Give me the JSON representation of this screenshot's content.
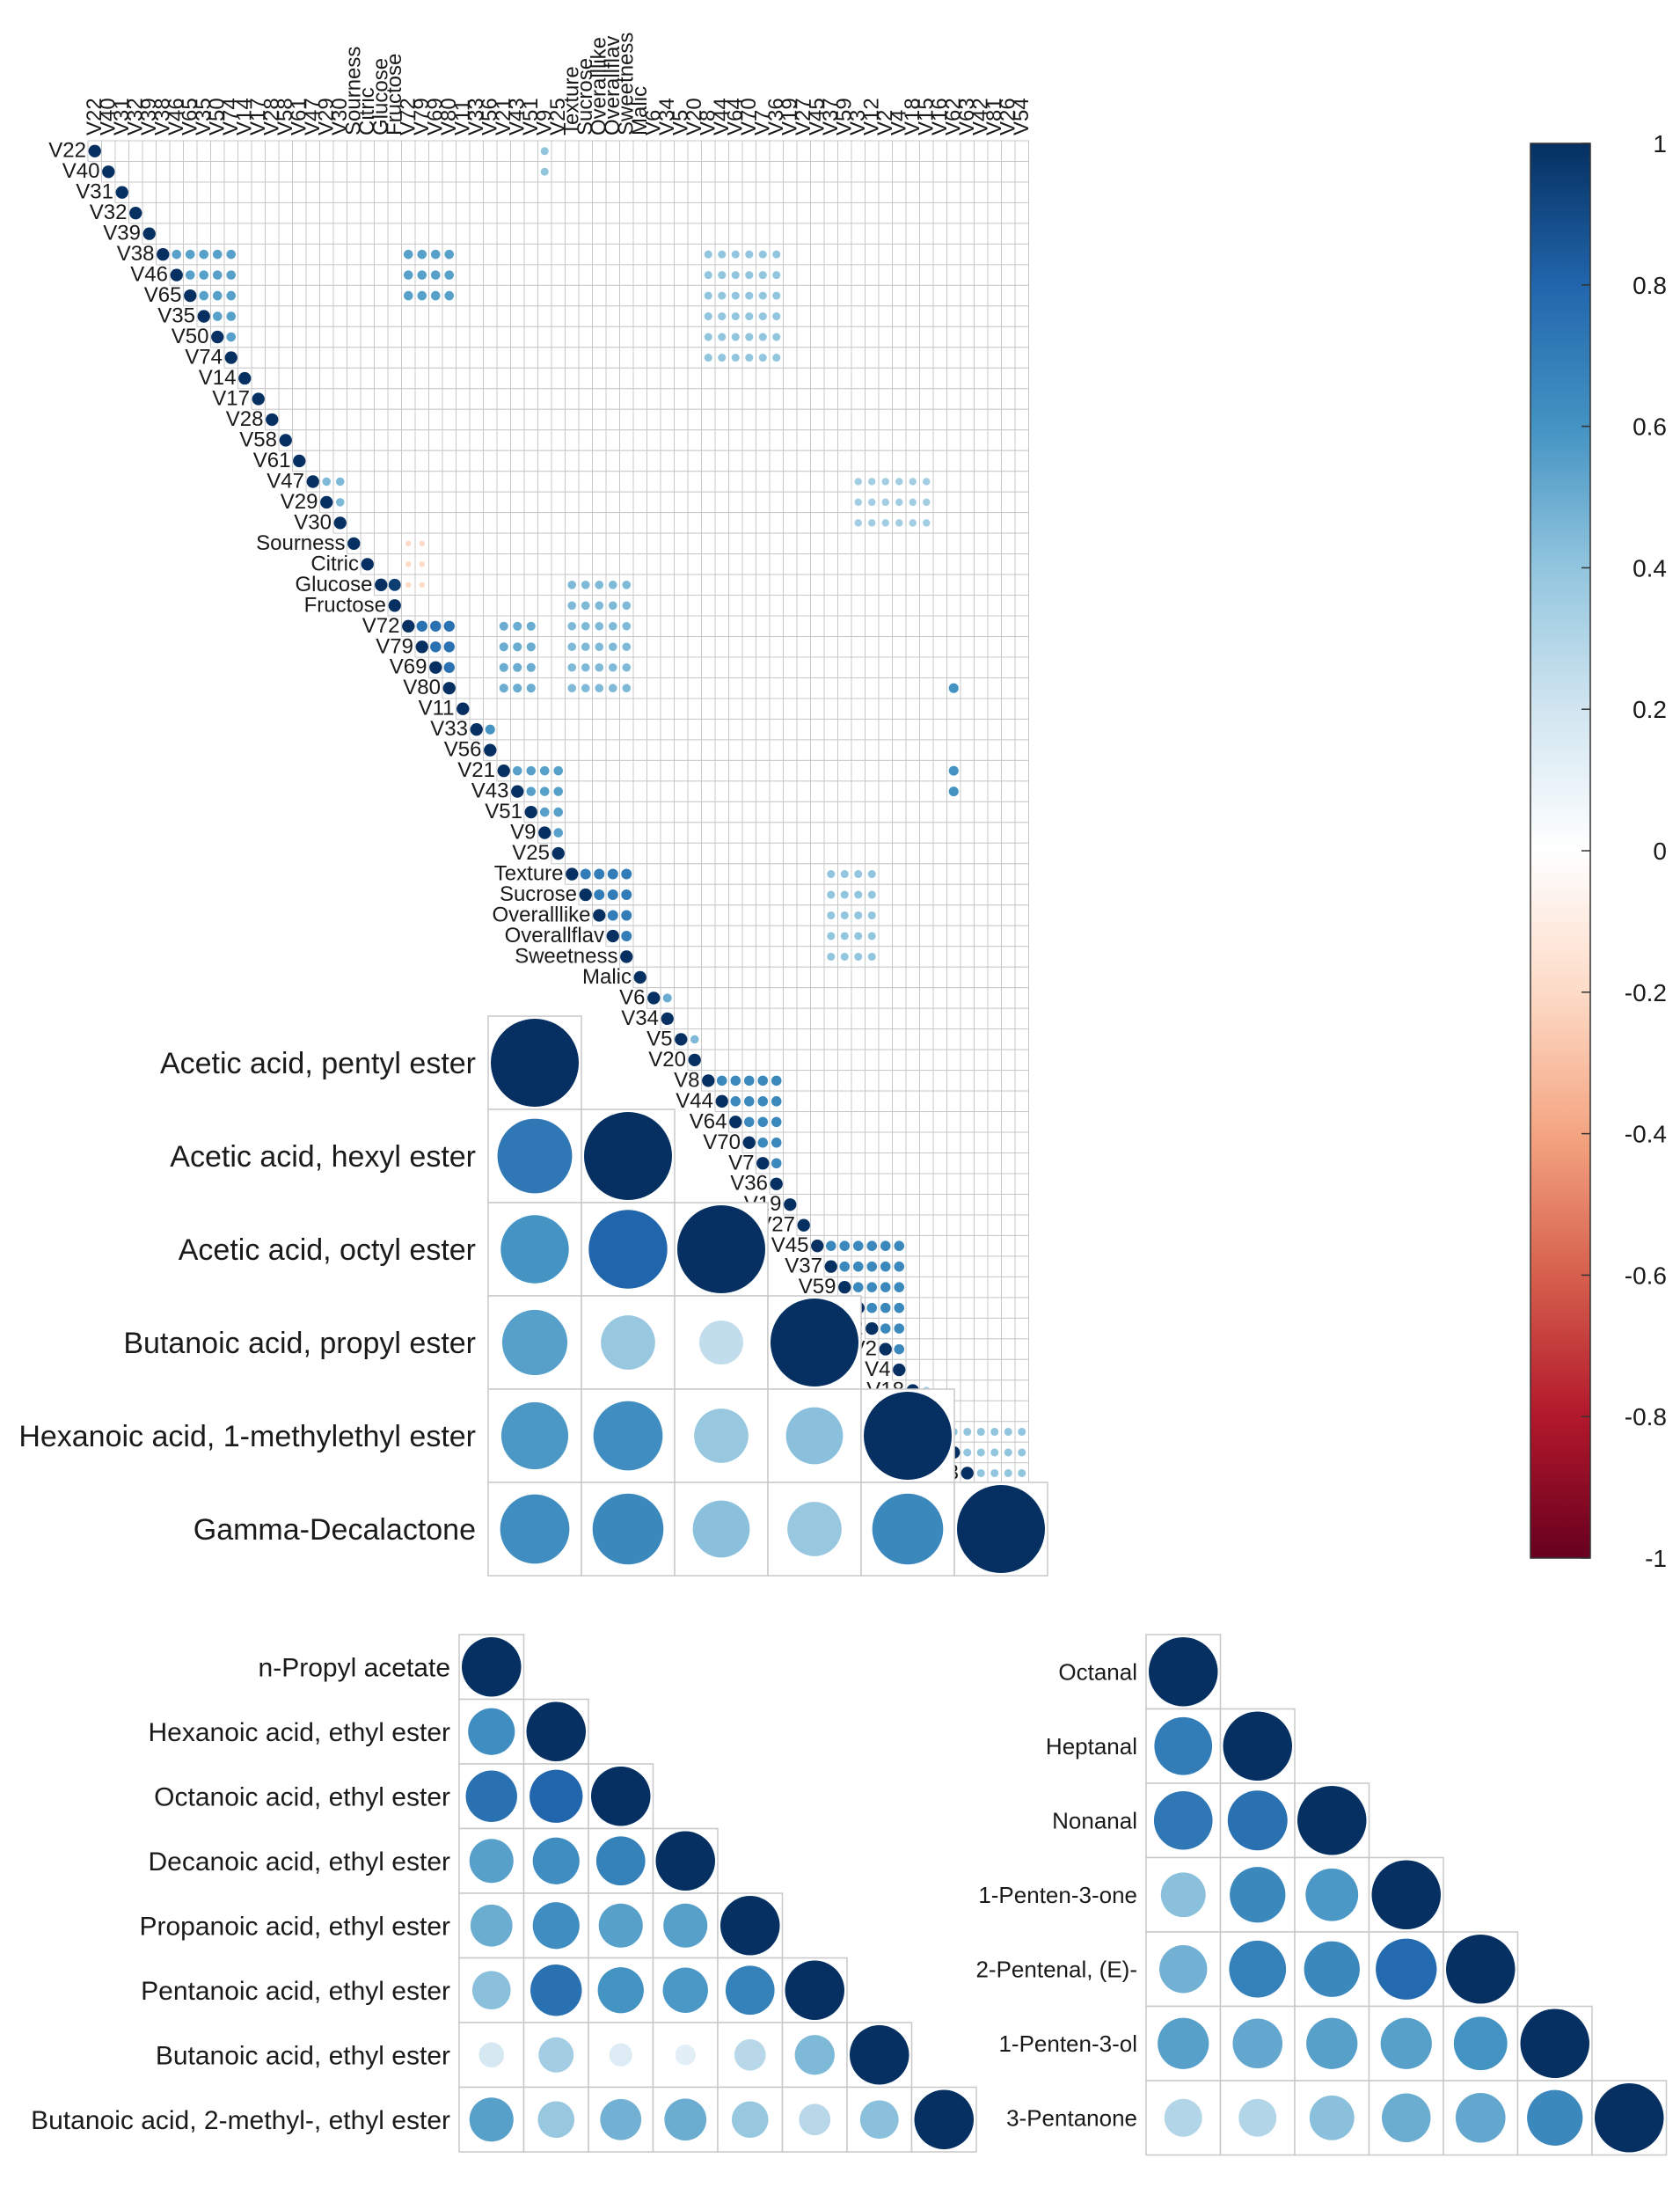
{
  "colors": {
    "grid": "#c8c8c8",
    "scale": [
      "#67001f",
      "#b2182b",
      "#d6604d",
      "#f4a582",
      "#fddbc7",
      "#ffffff",
      "#d1e5f0",
      "#92c5de",
      "#4393c3",
      "#2166ac",
      "#053061"
    ]
  },
  "chart_data": [
    {
      "id": "big",
      "type": "heatmap",
      "subtype": "upper-triangular correlation plot (circles)",
      "variables": [
        "V22",
        "V40",
        "V31",
        "V32",
        "V39",
        "V38",
        "V46",
        "V65",
        "V35",
        "V50",
        "V74",
        "V14",
        "V17",
        "V28",
        "V58",
        "V61",
        "V47",
        "V29",
        "V30",
        "Sourness",
        "Citric",
        "Glucose",
        "Fructose",
        "V72",
        "V79",
        "V69",
        "V80",
        "V11",
        "V33",
        "V56",
        "V21",
        "V43",
        "V51",
        "V9",
        "V25",
        "Texture",
        "Sucrose",
        "Overalllike",
        "Overallflav",
        "Sweetness",
        "Malic",
        "V6",
        "V34",
        "V5",
        "V20",
        "V8",
        "V44",
        "V64",
        "V70",
        "V7",
        "V36",
        "V19",
        "V27",
        "V45",
        "V37",
        "V59",
        "V3",
        "V12",
        "V2",
        "V4",
        "V18",
        "V15",
        "V16",
        "V62",
        "V63",
        "V42",
        "V81",
        "V26",
        "V54"
      ],
      "value_range": [
        -1,
        1
      ],
      "diagonal": 1,
      "blocks": [
        {
          "variables": [
            "V38",
            "V46",
            "V65",
            "V35",
            "V50",
            "V74"
          ],
          "r": 0.55
        },
        {
          "variables": [
            "V47",
            "V29",
            "V30"
          ],
          "r": 0.45
        },
        {
          "variables": [
            "Glucose",
            "Fructose"
          ],
          "r": 0.95
        },
        {
          "variables": [
            "V72",
            "V79",
            "V69",
            "V80"
          ],
          "r": 0.75
        },
        {
          "variables": [
            "V33",
            "V56"
          ],
          "r": 0.6
        },
        {
          "variables": [
            "V21",
            "V43",
            "V51",
            "V9",
            "V25"
          ],
          "r": 0.55
        },
        {
          "variables": [
            "Texture",
            "Sucrose",
            "Overalllike",
            "Overallflav",
            "Sweetness"
          ],
          "r": 0.7
        },
        {
          "variables": [
            "V6",
            "V34"
          ],
          "r": 0.5
        },
        {
          "variables": [
            "V5",
            "V20"
          ],
          "r": 0.45
        },
        {
          "variables": [
            "V8",
            "V44",
            "V64",
            "V70",
            "V7",
            "V36"
          ],
          "r": 0.65
        },
        {
          "variables": [
            "V45",
            "V37",
            "V59",
            "V3",
            "V12",
            "V2",
            "V4"
          ],
          "r": 0.65
        },
        {
          "variables": [
            "V18",
            "V15"
          ],
          "r": 0.35
        },
        {
          "variables": [
            "V16",
            "V62",
            "V63",
            "V42",
            "V81",
            "V26",
            "V54"
          ],
          "r": 0.4
        }
      ],
      "cross_block_correlations": [
        {
          "rows": [
            "V38",
            "V46",
            "V65"
          ],
          "cols": [
            "V72",
            "V79",
            "V69",
            "V80"
          ],
          "r": 0.55
        },
        {
          "rows": [
            "V38",
            "V46",
            "V65",
            "V35",
            "V50",
            "V74"
          ],
          "cols": [
            "V8",
            "V44",
            "V64",
            "V70",
            "V7",
            "V36"
          ],
          "r": 0.4
        },
        {
          "rows": [
            "Glucose",
            "Fructose",
            "V72",
            "V79",
            "V69",
            "V80"
          ],
          "cols": [
            "Texture",
            "Sucrose",
            "Overalllike",
            "Overallflav",
            "Sweetness"
          ],
          "r": 0.45
        },
        {
          "rows": [
            "V72",
            "V79",
            "V69",
            "V80"
          ],
          "cols": [
            "V21",
            "V43",
            "V51"
          ],
          "r": 0.5
        },
        {
          "rows": [
            "Texture",
            "Sucrose",
            "Overalllike",
            "Overallflav",
            "Sweetness"
          ],
          "cols": [
            "V37",
            "V59",
            "V3",
            "V12"
          ],
          "r": 0.4
        },
        {
          "rows": [
            "V47",
            "V29",
            "V30"
          ],
          "cols": [
            "V3",
            "V12",
            "V2",
            "V4",
            "V18",
            "V15"
          ],
          "r": 0.35
        },
        {
          "rows": [
            "V80",
            "V21",
            "V43"
          ],
          "cols": [
            "V62"
          ],
          "r": 0.6
        },
        {
          "rows": [
            "V22",
            "V40"
          ],
          "cols": [
            "V9"
          ],
          "r": 0.4
        },
        {
          "rows": [
            "Sourness",
            "Citric",
            "Glucose"
          ],
          "cols": [
            "V72",
            "V79"
          ],
          "r": -0.2
        }
      ]
    },
    {
      "id": "esters",
      "type": "heatmap",
      "subtype": "lower-triangular correlation plot (circles)",
      "variables": [
        "Acetic acid, pentyl ester",
        "Acetic acid, hexyl ester",
        "Acetic acid, octyl ester",
        "Butanoic acid, propyl ester",
        "Hexanoic acid, 1-methylethyl ester",
        "Gamma-Decalactone"
      ],
      "matrix": [
        [
          1
        ],
        [
          0.72,
          1
        ],
        [
          0.6,
          0.8,
          1
        ],
        [
          0.55,
          0.38,
          0.25,
          1
        ],
        [
          0.58,
          0.62,
          0.38,
          0.42,
          1
        ],
        [
          0.62,
          0.65,
          0.42,
          0.38,
          0.65,
          1
        ]
      ]
    },
    {
      "id": "ethyl",
      "type": "heatmap",
      "subtype": "lower-triangular correlation plot (circles)",
      "variables": [
        "n-Propyl acetate",
        "Hexanoic acid, ethyl ester",
        "Octanoic acid, ethyl ester",
        "Decanoic acid, ethyl ester",
        "Propanoic acid, ethyl ester",
        "Pentanoic acid, ethyl ester",
        "Butanoic acid, ethyl ester",
        "Butanoic acid, 2-methyl-, ethyl ester"
      ],
      "matrix": [
        [
          1
        ],
        [
          0.62,
          1
        ],
        [
          0.75,
          0.8,
          1
        ],
        [
          0.55,
          0.62,
          0.68,
          1
        ],
        [
          0.5,
          0.62,
          0.55,
          0.55,
          1
        ],
        [
          0.42,
          0.75,
          0.6,
          0.58,
          0.68,
          1
        ],
        [
          0.18,
          0.35,
          0.15,
          0.12,
          0.28,
          0.45,
          1
        ],
        [
          0.55,
          0.38,
          0.48,
          0.5,
          0.38,
          0.28,
          0.42,
          1
        ]
      ]
    },
    {
      "id": "aldehydes",
      "type": "heatmap",
      "subtype": "lower-triangular correlation plot (circles)",
      "variables": [
        "Octanal",
        "Heptanal",
        "Nonanal",
        "1-Penten-3-one",
        "2-Pentenal, (E)-",
        "1-Penten-3-ol",
        "3-Pentanone"
      ],
      "matrix": [
        [
          1
        ],
        [
          0.7,
          1
        ],
        [
          0.72,
          0.75,
          1
        ],
        [
          0.42,
          0.65,
          0.58,
          1
        ],
        [
          0.48,
          0.68,
          0.65,
          0.78,
          1
        ],
        [
          0.55,
          0.52,
          0.55,
          0.55,
          0.6,
          1
        ],
        [
          0.3,
          0.3,
          0.42,
          0.5,
          0.52,
          0.65,
          1
        ]
      ]
    }
  ],
  "colorbar": {
    "ticks": [
      "1",
      "0.8",
      "0.6",
      "0.4",
      "0.2",
      "0",
      "-0.2",
      "-0.4",
      "-0.6",
      "-0.8",
      "-1"
    ]
  }
}
